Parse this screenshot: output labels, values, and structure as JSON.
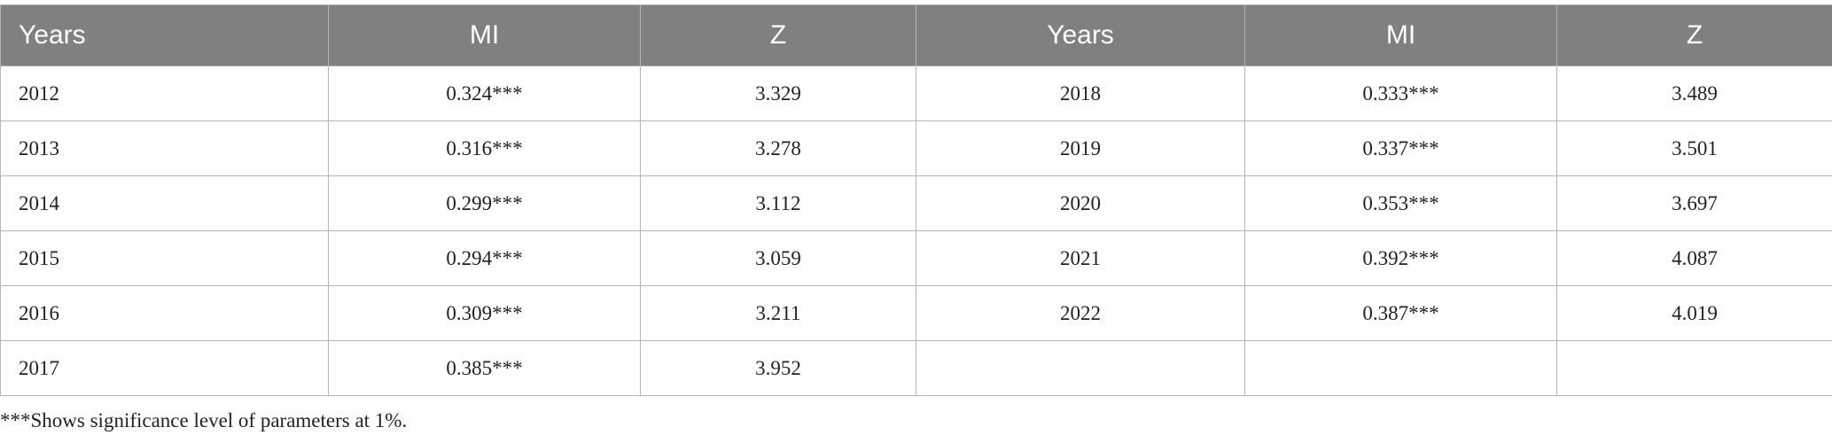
{
  "table": {
    "header": [
      "Years",
      "MI",
      "Z",
      "Years",
      "MI",
      "Z"
    ],
    "rows": [
      [
        "2012",
        "0.324***",
        "3.329",
        "2018",
        "0.333***",
        "3.489"
      ],
      [
        "2013",
        "0.316***",
        "3.278",
        "2019",
        "0.337***",
        "3.501"
      ],
      [
        "2014",
        "0.299***",
        "3.112",
        "2020",
        "0.353***",
        "3.697"
      ],
      [
        "2015",
        "0.294***",
        "3.059",
        "2021",
        "0.392***",
        "4.087"
      ],
      [
        "2016",
        "0.309***",
        "3.211",
        "2022",
        "0.387***",
        "4.019"
      ],
      [
        "2017",
        "0.385***",
        "3.952"
      ]
    ]
  },
  "footnote": "***Shows significance level of parameters at 1%."
}
